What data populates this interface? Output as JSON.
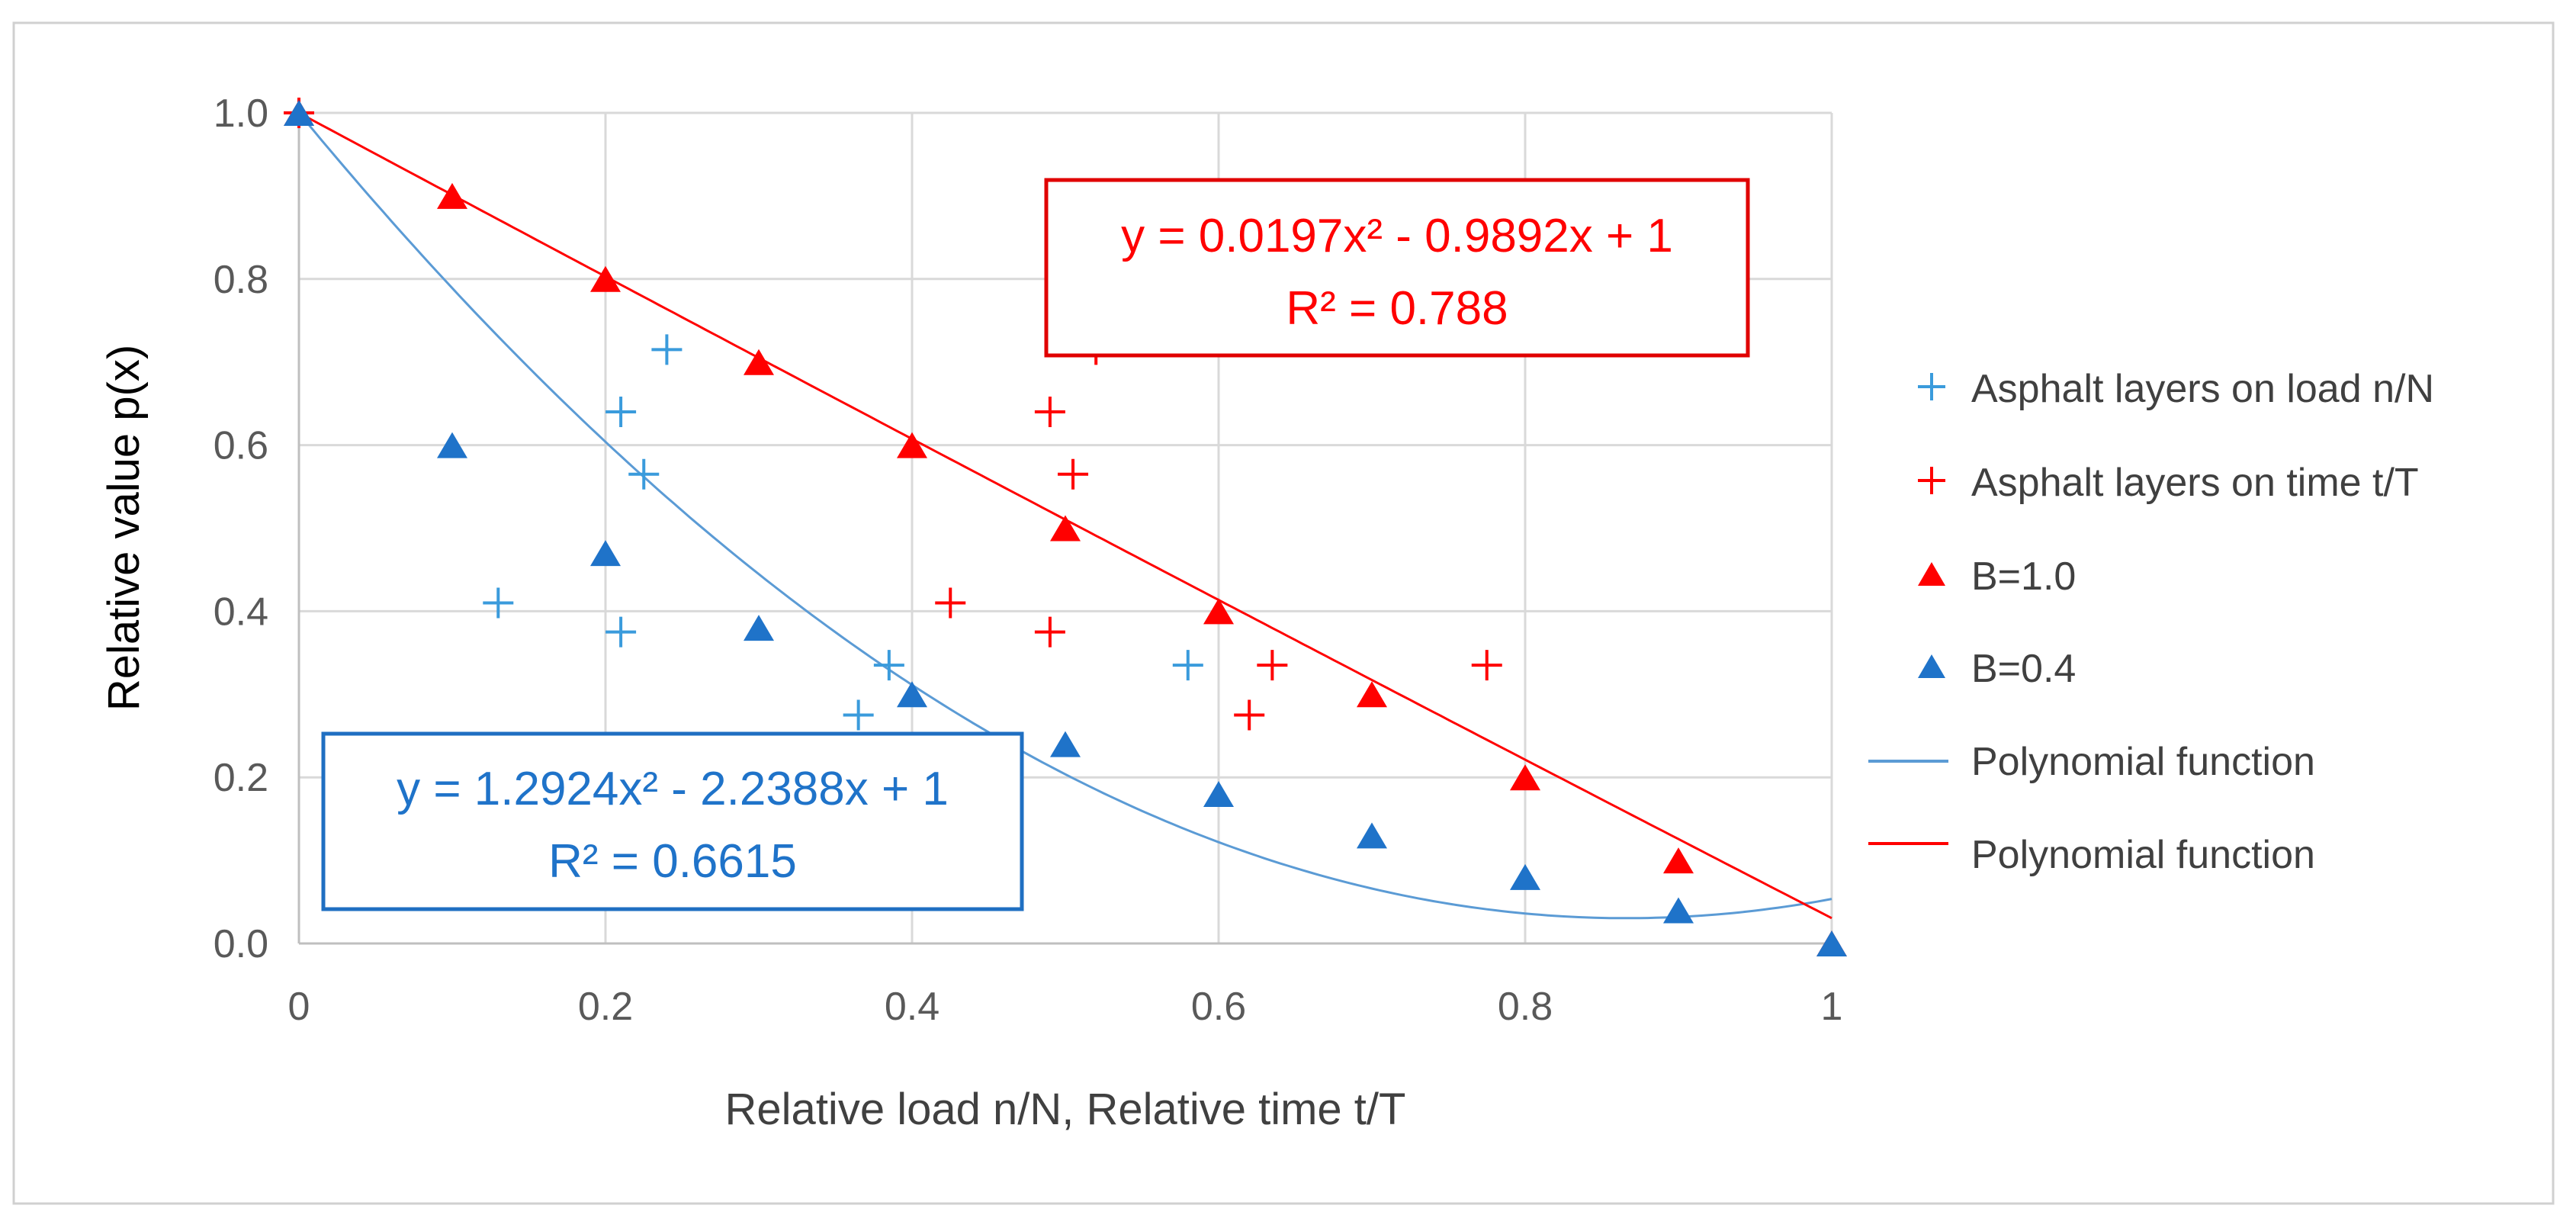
{
  "chart_data": {
    "type": "scatter",
    "title": "",
    "xlabel": "Relative load n/N,  Relative time t/T",
    "ylabel": "Relative value p(x)",
    "xlim": [
      0,
      1
    ],
    "ylim": [
      0,
      1
    ],
    "x_ticks": [
      "0",
      "0.2",
      "0.4",
      "0.6",
      "0.8",
      "1"
    ],
    "y_ticks": [
      "0.0",
      "0.2",
      "0.4",
      "0.6",
      "0.8",
      "1.0"
    ],
    "grid": true,
    "legend_position": "right",
    "series": [
      {
        "name": "Asphalt layers on load n/N",
        "marker": "plus",
        "color": "#3A9BDC",
        "x": [
          0.0,
          0.13,
          0.21,
          0.225,
          0.24,
          0.21,
          0.365,
          0.385,
          0.58
        ],
        "y": [
          1.0,
          0.41,
          0.64,
          0.565,
          0.715,
          0.375,
          0.275,
          0.335,
          0.335
        ]
      },
      {
        "name": "Asphalt layers on time t/T",
        "marker": "plus",
        "color": "#FF0000",
        "x": [
          0.0,
          0.425,
          0.49,
          0.49,
          0.505,
          0.52,
          0.62,
          0.635,
          0.775
        ],
        "y": [
          1.0,
          0.41,
          0.375,
          0.64,
          0.565,
          0.715,
          0.275,
          0.335,
          0.335
        ]
      },
      {
        "name": "B=1.0",
        "marker": "triangle",
        "color": "#FF0000",
        "x": [
          0,
          0.1,
          0.2,
          0.3,
          0.4,
          0.5,
          0.6,
          0.7,
          0.8,
          0.9,
          1.0
        ],
        "y": [
          1.0,
          0.9,
          0.8,
          0.7,
          0.6,
          0.5,
          0.4,
          0.3,
          0.2,
          0.1,
          0.0
        ]
      },
      {
        "name": "B=0.4",
        "marker": "triangle",
        "color": "#1F73C9",
        "x": [
          0,
          0.1,
          0.2,
          0.3,
          0.4,
          0.5,
          0.6,
          0.7,
          0.8,
          0.9,
          1.0
        ],
        "y": [
          1.0,
          0.6,
          0.47,
          0.38,
          0.3,
          0.24,
          0.18,
          0.13,
          0.08,
          0.04,
          0.0
        ]
      }
    ],
    "trendlines": [
      {
        "name": "Polynomial function",
        "color": "#5B9BD5",
        "coefficients": [
          1.2924,
          -2.2388,
          1
        ],
        "equation": "y = 1.2924x² - 2.2388x + 1",
        "r2": "R² = 0.6615"
      },
      {
        "name": "Polynomial function",
        "color": "#FF0000",
        "coefficients": [
          0.0197,
          -0.9892,
          1
        ],
        "equation": "y = 0.0197x² - 0.9892x + 1",
        "r2": "R² = 0.788"
      }
    ]
  }
}
